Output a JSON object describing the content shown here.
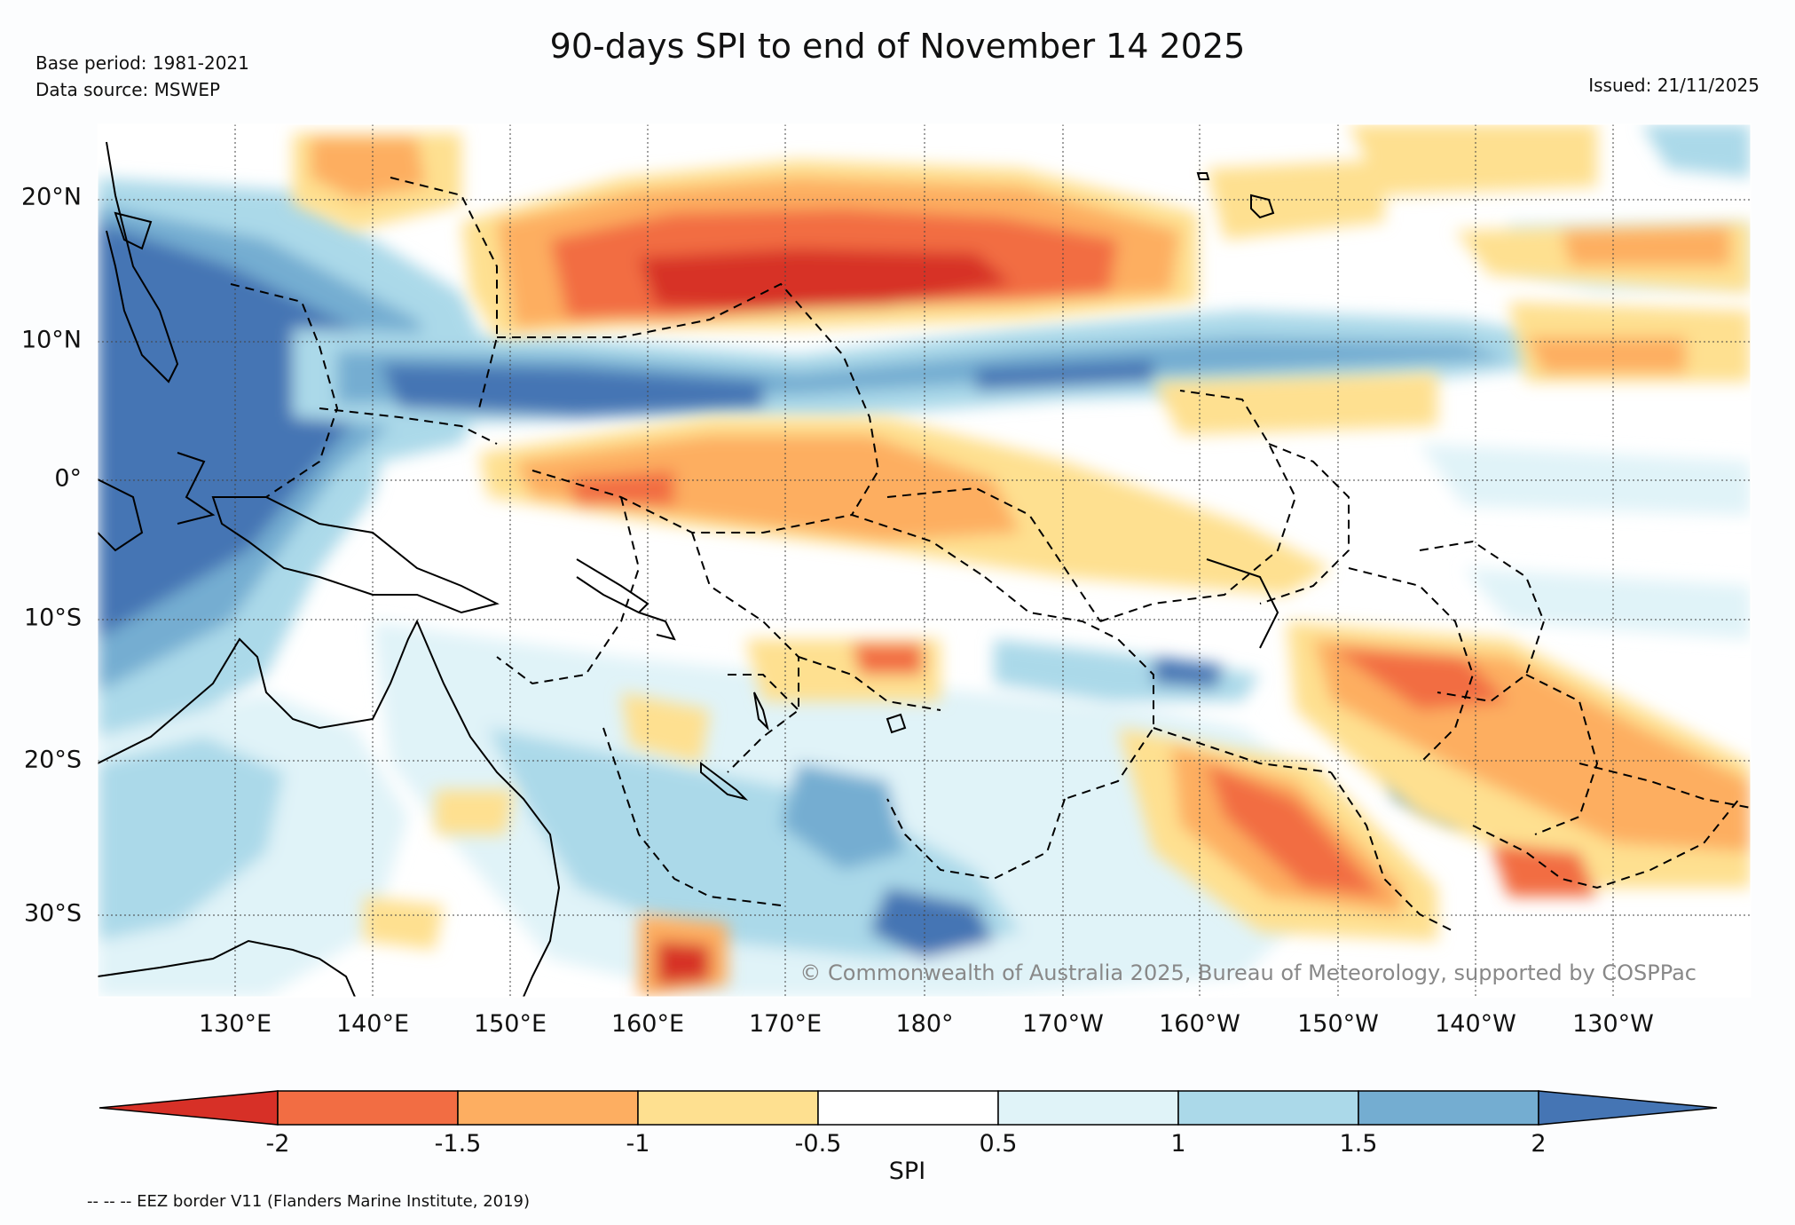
{
  "title": "90-days SPI to end of November 14 2025",
  "base_period": "Base period: 1981-2021",
  "data_source": "Data source: MSWEP",
  "issued": "Issued: 21/11/2025",
  "copyright": "© Commonwealth of Australia 2025, Bureau of Meteorology, supported by COSPPac",
  "footer_note": "-- -- -- EEZ border V11 (Flanders Marine Institute, 2019)",
  "lat_labels": [
    "20°N",
    "10°N",
    "0°",
    "10°S",
    "20°S",
    "30°S"
  ],
  "lon_labels": [
    "130°E",
    "140°E",
    "150°E",
    "160°E",
    "170°E",
    "180°",
    "170°W",
    "160°W",
    "150°W",
    "140°W",
    "130°W"
  ],
  "colorbar": {
    "title": "SPI",
    "ticks": [
      "-2",
      "-1.5",
      "-1",
      "-0.5",
      "0.5",
      "1",
      "1.5",
      "2"
    ],
    "colors": {
      "lt_-2": "#d73027",
      "-2_-1.5": "#f26d43",
      "-1.5_-1": "#fdae61",
      "-1_-0.5": "#fee090",
      "-0.5_0.5": "#ffffff",
      "0.5_1": "#e0f3f8",
      "1_1.5": "#abd9e9",
      "1.5_2": "#74add1",
      "gt_2": "#4575b4"
    }
  },
  "map_extent": {
    "lon_min_e": 120,
    "lon_max_e": 240,
    "lat_min": -36,
    "lat_max": 25
  }
}
